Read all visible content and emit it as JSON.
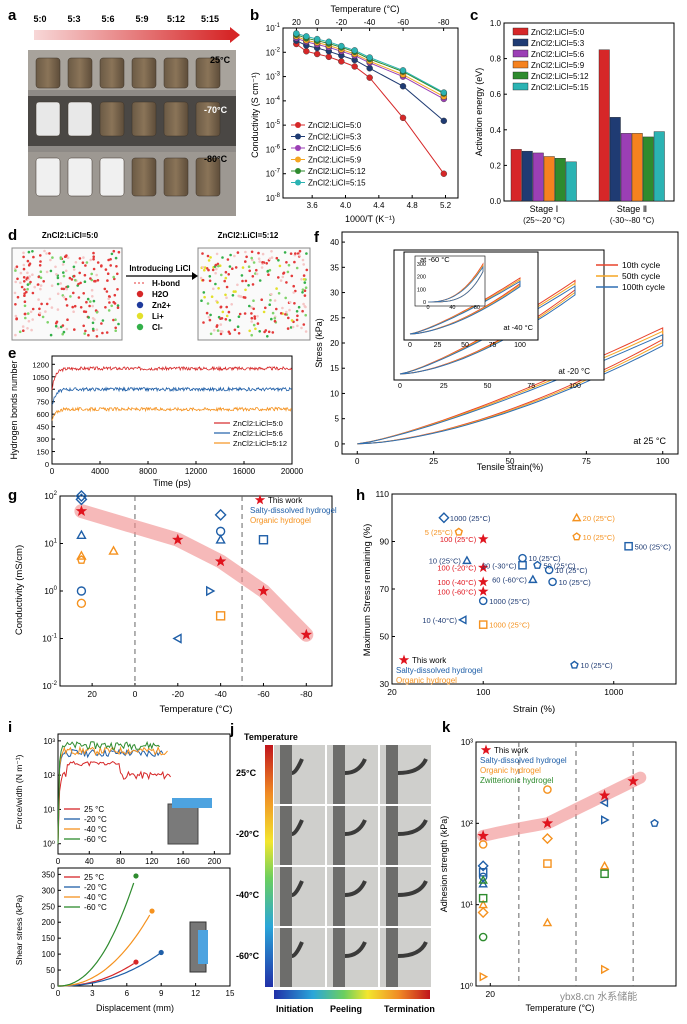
{
  "panel_labels": {
    "a": "a",
    "b": "b",
    "c": "c",
    "d": "d",
    "e": "e",
    "f": "f",
    "g": "g",
    "h": "h",
    "i": "i",
    "j": "j",
    "k": "k"
  },
  "panel_a": {
    "ratios": [
      "5:0",
      "5:3",
      "5:6",
      "5:9",
      "5:12",
      "5:15"
    ],
    "temps": [
      "25°C",
      "-70°C",
      "-80°C"
    ]
  },
  "panel_d": {
    "left_title": "ZnCl2:LiCl=5:0",
    "right_title": "ZnCl2:LiCl=5:12",
    "arrow_text": "Introducing LiCl",
    "legend": [
      "H-bond",
      "H2O",
      "Zn2+",
      "Li+",
      "Cl-"
    ]
  },
  "panel_j": {
    "title": "Temperature",
    "rows": [
      "25°C",
      "-20°C",
      "-40°C",
      "-60°C"
    ],
    "cols": [
      "Initiation",
      "Peeling",
      "Termination"
    ]
  },
  "watermark": "ybx8.cn 水系储能",
  "chart_data": [
    {
      "id": "b",
      "type": "line",
      "title": "",
      "xlabel": "1000/T (K⁻¹)",
      "ylabel": "Conductivity (S cm⁻¹)",
      "top_xlabel": "Temperature (°C)",
      "xlim": [
        3.25,
        5.35
      ],
      "ylim_log": [
        -8,
        -1
      ],
      "xticks": [
        "3.6",
        "4.0",
        "4.4",
        "4.8",
        "5.2"
      ],
      "top_ticks": [
        "20",
        "0",
        "-20",
        "-40",
        "-60",
        "-80"
      ],
      "x": [
        3.41,
        3.53,
        3.66,
        3.8,
        3.95,
        4.11,
        4.29,
        4.69,
        5.18
      ],
      "series": [
        {
          "name": "ZnCl2:LiCl=5:0",
          "color": "#d62728",
          "values": [
            0.022,
            0.011,
            0.0085,
            0.0065,
            0.0042,
            0.0026,
            0.0009,
            2e-05,
            1e-07
          ]
        },
        {
          "name": "ZnCl2:LiCl=5:3",
          "color": "#1f3b73",
          "values": [
            0.03,
            0.019,
            0.015,
            0.011,
            0.0074,
            0.0048,
            0.0022,
            0.0004,
            1.5e-05
          ]
        },
        {
          "name": "ZnCl2:LiCl=5:6",
          "color": "#9b3fb5",
          "values": [
            0.038,
            0.027,
            0.021,
            0.016,
            0.011,
            0.0073,
            0.0037,
            0.001,
            0.00012
          ]
        },
        {
          "name": "ZnCl2:LiCl=5:9",
          "color": "#f5a623",
          "values": [
            0.045,
            0.031,
            0.025,
            0.019,
            0.013,
            0.0085,
            0.0043,
            0.0012,
            0.00015
          ]
        },
        {
          "name": "ZnCl2:LiCl=5:12",
          "color": "#2e8b2e",
          "values": [
            0.053,
            0.038,
            0.03,
            0.023,
            0.016,
            0.0105,
            0.0053,
            0.0016,
            0.0002
          ]
        },
        {
          "name": "ZnCl2:LiCl=5:15",
          "color": "#2bb3b3",
          "values": [
            0.06,
            0.045,
            0.035,
            0.027,
            0.018,
            0.012,
            0.0061,
            0.0018,
            0.00022
          ]
        }
      ]
    },
    {
      "id": "c",
      "type": "bar",
      "xlabel": "",
      "ylabel": "Activation energy (eV)",
      "ylim": [
        0,
        1.0
      ],
      "yticks": [
        "0.0",
        "0.2",
        "0.4",
        "0.6",
        "0.8",
        "1.0"
      ],
      "categories": [
        "Stage Ⅰ",
        "Stage Ⅱ"
      ],
      "sublabels": [
        "(25~-20 °C)",
        "(-30~-80 °C)"
      ],
      "series": [
        {
          "name": "ZnCl2:LiCl=5:0",
          "color": "#d62728",
          "values": [
            0.29,
            0.85
          ]
        },
        {
          "name": "ZnCl2:LiCl=5:3",
          "color": "#1f3b73",
          "values": [
            0.28,
            0.47
          ]
        },
        {
          "name": "ZnCl2:LiCl=5:6",
          "color": "#9b3fb5",
          "values": [
            0.27,
            0.38
          ]
        },
        {
          "name": "ZnCl2:LiCl=5:9",
          "color": "#f5821f",
          "values": [
            0.25,
            0.38
          ]
        },
        {
          "name": "ZnCl2:LiCl=5:12",
          "color": "#2e8b2e",
          "values": [
            0.24,
            0.36
          ]
        },
        {
          "name": "ZnCl2:LiCl=5:15",
          "color": "#2bb3b3",
          "values": [
            0.22,
            0.39
          ]
        }
      ]
    },
    {
      "id": "e",
      "type": "line",
      "xlabel": "Time (ps)",
      "ylabel": "Hydrogen bonds number",
      "xlim": [
        0,
        20000
      ],
      "ylim": [
        0,
        1300
      ],
      "xticks": [
        "0",
        "4000",
        "8000",
        "12000",
        "16000",
        "20000"
      ],
      "yticks": [
        "0",
        "150",
        "300",
        "450",
        "600",
        "750",
        "900",
        "1050",
        "1200"
      ],
      "series": [
        {
          "name": "ZnCl2:LiCl=5:0",
          "color": "#d62728",
          "level": 1150,
          "start": 900
        },
        {
          "name": "ZnCl2:LiCl=5:6",
          "color": "#1f5fa8",
          "level": 900,
          "start": 700
        },
        {
          "name": "ZnCl2:LiCl=5:12",
          "color": "#f5921f",
          "level": 660,
          "start": 520
        }
      ]
    },
    {
      "id": "f",
      "type": "line",
      "xlabel": "Tensile strain(%)",
      "ylabel": "Stress (kPa)",
      "xlim": [
        -5,
        105
      ],
      "ylim": [
        -2,
        42
      ],
      "xticks": [
        "0",
        "25",
        "50",
        "75",
        "100"
      ],
      "yticks": [
        "0",
        "5",
        "10",
        "15",
        "20",
        "25",
        "30",
        "35",
        "40"
      ],
      "legend": [
        "10th cycle",
        "50th cycle",
        "100th cycle"
      ],
      "legend_colors": [
        "#e8432c",
        "#f5a623",
        "#2f6fb3"
      ],
      "temps": [
        "at 25 °C",
        "at -20 °C",
        "at -40 °C",
        "at -60 °C"
      ],
      "inset1_xticks": [
        "0",
        "25",
        "50",
        "75",
        "100"
      ],
      "inset2_yticks": [
        "0",
        "100",
        "200",
        "300"
      ],
      "inset2_xticks": [
        "0",
        "40",
        "80"
      ],
      "max_stress": {
        "25": 23,
        "-20": "",
        "-40": "",
        "-60": 300
      }
    },
    {
      "id": "g",
      "type": "scatter",
      "xlabel": "Temperature (°C)",
      "ylabel": "Conductivity (mS/cm)",
      "xlim": [
        35,
        -92
      ],
      "ylim_log": [
        -2,
        2
      ],
      "xticks": [
        "20",
        "0",
        "-20",
        "-40",
        "-60",
        "-80"
      ],
      "legend": [
        "This work",
        "Salty-dissolved hydrogel",
        "Organic hydrogel"
      ],
      "this_work": [
        [
          25,
          48
        ],
        [
          -20,
          12
        ],
        [
          -40,
          4.2
        ],
        [
          -60,
          1.0
        ],
        [
          -80,
          0.12
        ]
      ],
      "blue": [
        [
          25,
          100
        ],
        [
          25,
          85
        ],
        [
          25,
          15
        ],
        [
          25,
          1.0
        ],
        [
          -40,
          40
        ],
        [
          -40,
          18
        ],
        [
          -40,
          12
        ],
        [
          -35,
          1.0
        ],
        [
          -20,
          0.1
        ],
        [
          -60,
          12
        ]
      ],
      "orange": [
        [
          25,
          5.5
        ],
        [
          25,
          4.5
        ],
        [
          25,
          0.55
        ],
        [
          10,
          7
        ],
        [
          -40,
          0.3
        ]
      ]
    },
    {
      "id": "h",
      "type": "scatter",
      "xlabel": "Strain (%)",
      "ylabel": "Maximum Stress remaining (%)",
      "xlim_log": [
        20,
        3000
      ],
      "ylim": [
        30,
        110
      ],
      "xticks": [
        "20",
        "100",
        "1000"
      ],
      "yticks": [
        "30",
        "50",
        "70",
        "90",
        "110"
      ],
      "legend": [
        "This work",
        "Salty-dissolved hydrogel",
        "Organic hydrogel"
      ],
      "this_work": [
        [
          100,
          91,
          "100 (25°C)"
        ],
        [
          100,
          79,
          "100 (-20°C)"
        ],
        [
          100,
          73,
          "100 (-40°C)"
        ],
        [
          100,
          69,
          "100 (-60°C)"
        ]
      ],
      "blue_labels": [
        "1000 (25°C)",
        "10 (25°C)",
        "20 (-30°C)",
        "10 (25°C)",
        "50 (25°C)",
        "10 (25°C)",
        "10 (25°C)",
        "60 (-60°C)",
        "1000 (25°C)",
        "10 (-40°C)",
        "500 (25°C)",
        "10 (25°C)"
      ],
      "orange_labels": [
        "5 (25°C)",
        "20 (25°C)",
        "10 (25°C)",
        "1000 (25°C)"
      ]
    },
    {
      "id": "i1",
      "type": "line",
      "xlabel": "",
      "ylabel": "Force/width (N m⁻¹)",
      "xlim": [
        0,
        220
      ],
      "ylim_log": [
        -0.3,
        3.2
      ],
      "xticks": [
        "0",
        "40",
        "80",
        "120",
        "160",
        "200"
      ],
      "yticks": [
        "10⁰",
        "10¹",
        "10²",
        "10³"
      ],
      "legend": [
        "25 °C",
        "-20 °C",
        "-40 °C",
        "-60 °C"
      ],
      "colors": [
        "#d62728",
        "#1f5fa8",
        "#f5921f",
        "#2e8b2e"
      ]
    },
    {
      "id": "i2",
      "type": "line",
      "xlabel": "Displacement (mm)",
      "ylabel": "Shear stress (kPa)",
      "xlim": [
        0,
        15
      ],
      "ylim": [
        0,
        370
      ],
      "xticks": [
        "0",
        "3",
        "6",
        "9",
        "12",
        "15"
      ],
      "yticks": [
        "0",
        "50",
        "100",
        "150",
        "200",
        "250",
        "300",
        "350"
      ],
      "legend": [
        "25 °C",
        "-20 °C",
        "-40 °C",
        "-60 °C"
      ],
      "series": [
        {
          "name": "25 °C",
          "color": "#d62728",
          "end": [
            6.8,
            75
          ]
        },
        {
          "name": "-20 °C",
          "color": "#1f5fa8",
          "end": [
            9.0,
            105
          ]
        },
        {
          "name": "-40 °C",
          "color": "#f5921f",
          "end": [
            8.2,
            235
          ]
        },
        {
          "name": "-60 °C",
          "color": "#2e8b2e",
          "end": [
            6.8,
            345
          ]
        }
      ]
    },
    {
      "id": "k",
      "type": "scatter",
      "xlabel": "Temperature (°C)",
      "ylabel": "Adhesion strength (kPa)",
      "xlim": [
        30,
        -110
      ],
      "ylim_log": [
        0,
        3
      ],
      "xticks": [
        "20"
      ],
      "yticks": [
        "10⁰",
        "10¹",
        "10²",
        "10³"
      ],
      "legend": [
        "This work",
        "Salty-dissolved hydrogel",
        "Organic hydrogel",
        "Zwitterionic hydrogel"
      ],
      "this_work": [
        [
          25,
          70
        ],
        [
          -20,
          100
        ],
        [
          -60,
          220
        ],
        [
          -80,
          330
        ]
      ]
    }
  ]
}
